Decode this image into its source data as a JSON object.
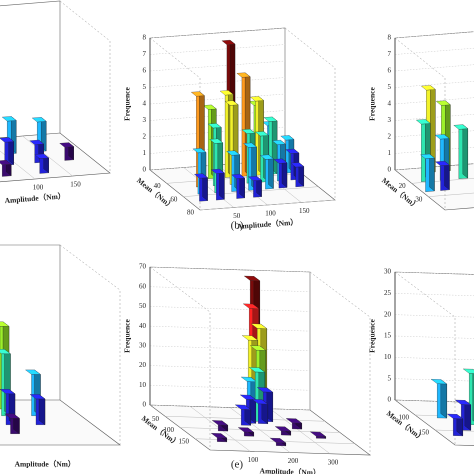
{
  "chart_data": [
    {
      "type": "bar3d",
      "x_label": "Amplitude（Nm）",
      "xlim": [
        0,
        200
      ],
      "ylim": [
        20,
        80
      ],
      "zlim": [
        0,
        8
      ],
      "xticks": [
        100,
        150
      ],
      "colors": [
        "#3a0a6e",
        "#2222d8",
        "#1fb8ff",
        "#2ee6b0",
        "#9cf02a",
        "#f2f22a",
        "#ff9a1e",
        "#ff2222",
        "#7a0a0a"
      ],
      "bars": [
        {
          "x": 20,
          "y": 40,
          "value": 1.2
        },
        {
          "x": 60,
          "y": 40,
          "value": 1.6
        },
        {
          "x": 110,
          "y": 40,
          "value": 2.0
        },
        {
          "x": 150,
          "y": 40,
          "value": 1.8
        },
        {
          "x": 40,
          "y": 55,
          "value": 1.0
        },
        {
          "x": 90,
          "y": 55,
          "value": 1.4
        },
        {
          "x": 130,
          "y": 55,
          "value": 1.1
        },
        {
          "x": 170,
          "y": 55,
          "value": 0.8
        },
        {
          "x": 70,
          "y": 70,
          "value": 0.7
        },
        {
          "x": 120,
          "y": 70,
          "value": 0.9
        }
      ]
    },
    {
      "type": "bar3d",
      "title": "(b)",
      "z_label": "Frequence",
      "x_label": "Amplitude（Nm）",
      "y_label": "Mean（Nm）",
      "xlim": [
        0,
        200
      ],
      "ylim": [
        20,
        80
      ],
      "zlim": [
        0,
        8
      ],
      "xticks": [
        50,
        100,
        150
      ],
      "yticks": [
        40,
        60,
        80
      ],
      "zticks": [
        0,
        1,
        2,
        3,
        4,
        5,
        6,
        7,
        8
      ],
      "colors": [
        "#3a0a6e",
        "#2222d8",
        "#1fb8ff",
        "#2ee6b0",
        "#9cf02a",
        "#f2f22a",
        "#ff9a1e",
        "#ff2222",
        "#7a0a0a"
      ],
      "bars": [
        {
          "x": 110,
          "y": 25,
          "value": 7.6
        },
        {
          "x": 150,
          "y": 25,
          "value": 3.8
        },
        {
          "x": 170,
          "y": 25,
          "value": 2.5
        },
        {
          "x": 70,
          "y": 35,
          "value": 4.2
        },
        {
          "x": 95,
          "y": 35,
          "value": 5.0
        },
        {
          "x": 120,
          "y": 35,
          "value": 6.0
        },
        {
          "x": 140,
          "y": 35,
          "value": 4.5
        },
        {
          "x": 160,
          "y": 35,
          "value": 3.2
        },
        {
          "x": 185,
          "y": 35,
          "value": 2.0
        },
        {
          "x": 40,
          "y": 45,
          "value": 5.5
        },
        {
          "x": 65,
          "y": 45,
          "value": 3.5
        },
        {
          "x": 90,
          "y": 45,
          "value": 4.8
        },
        {
          "x": 115,
          "y": 45,
          "value": 3.0
        },
        {
          "x": 135,
          "y": 45,
          "value": 2.8
        },
        {
          "x": 160,
          "y": 45,
          "value": 2.2
        },
        {
          "x": 180,
          "y": 45,
          "value": 1.6
        },
        {
          "x": 30,
          "y": 55,
          "value": 2.5
        },
        {
          "x": 55,
          "y": 55,
          "value": 3.0
        },
        {
          "x": 80,
          "y": 55,
          "value": 2.2
        },
        {
          "x": 105,
          "y": 55,
          "value": 2.6
        },
        {
          "x": 130,
          "y": 55,
          "value": 1.8
        },
        {
          "x": 150,
          "y": 55,
          "value": 1.5
        },
        {
          "x": 175,
          "y": 55,
          "value": 1.2
        },
        {
          "x": 20,
          "y": 65,
          "value": 1.4
        },
        {
          "x": 45,
          "y": 65,
          "value": 1.6
        },
        {
          "x": 75,
          "y": 65,
          "value": 1.2
        },
        {
          "x": 100,
          "y": 65,
          "value": 1.0
        }
      ]
    },
    {
      "type": "bar3d",
      "z_label": "Frequence",
      "y_label": "Mean（Nm）",
      "xlim": [
        0,
        200
      ],
      "ylim": [
        10,
        40
      ],
      "zlim": [
        0,
        8
      ],
      "yticks": [
        20,
        30
      ],
      "zticks": [
        0,
        1,
        2,
        3,
        4,
        5,
        6,
        7,
        8
      ],
      "colors": [
        "#3a0a6e",
        "#2222d8",
        "#1fb8ff",
        "#2ee6b0",
        "#9cf02a",
        "#f2f22a",
        "#ff9a1e",
        "#ff2222",
        "#7a0a0a"
      ],
      "bars": [
        {
          "x": 40,
          "y": 12,
          "value": 5.0
        },
        {
          "x": 60,
          "y": 12,
          "value": 4.0
        },
        {
          "x": 20,
          "y": 18,
          "value": 3.5
        },
        {
          "x": 45,
          "y": 18,
          "value": 2.5
        },
        {
          "x": 70,
          "y": 18,
          "value": 3.0
        },
        {
          "x": 10,
          "y": 25,
          "value": 2.0
        },
        {
          "x": 30,
          "y": 25,
          "value": 1.5
        }
      ]
    },
    {
      "type": "bar3d",
      "x_label": "Amplitude（Nm）",
      "xlim": [
        0,
        200
      ],
      "ylim": [
        0,
        200
      ],
      "zlim": [
        0,
        30
      ],
      "colors": [
        "#3a0a6e",
        "#2222d8",
        "#1fb8ff",
        "#2ee6b0",
        "#9cf02a",
        "#f2f22a",
        "#ff9a1e",
        "#ff2222",
        "#7a0a0a"
      ],
      "bars": [
        {
          "x": 60,
          "y": 10,
          "value": 29
        },
        {
          "x": 90,
          "y": 10,
          "value": 24
        },
        {
          "x": 40,
          "y": 30,
          "value": 26
        },
        {
          "x": 75,
          "y": 30,
          "value": 20
        },
        {
          "x": 110,
          "y": 30,
          "value": 16
        },
        {
          "x": 30,
          "y": 60,
          "value": 18
        },
        {
          "x": 60,
          "y": 60,
          "value": 14
        },
        {
          "x": 100,
          "y": 60,
          "value": 12
        },
        {
          "x": 140,
          "y": 60,
          "value": 8
        },
        {
          "x": 20,
          "y": 100,
          "value": 10
        },
        {
          "x": 55,
          "y": 100,
          "value": 8
        },
        {
          "x": 90,
          "y": 100,
          "value": 6
        },
        {
          "x": 130,
          "y": 100,
          "value": 5
        },
        {
          "x": 40,
          "y": 140,
          "value": 4
        },
        {
          "x": 80,
          "y": 140,
          "value": 3
        }
      ]
    },
    {
      "type": "bar3d",
      "title": "(e)",
      "z_label": "Frequence",
      "x_label": "Amplitude（Nm）",
      "y_label": "Mean（Nm）",
      "xlim": [
        0,
        400
      ],
      "ylim": [
        0,
        200
      ],
      "zlim": [
        0,
        70
      ],
      "xticks": [
        100,
        200,
        300
      ],
      "yticks": [
        50,
        100,
        150
      ],
      "zticks": [
        0,
        10,
        20,
        30,
        40,
        50,
        60,
        70
      ],
      "colors": [
        "#3a0a6e",
        "#2222d8",
        "#1fb8ff",
        "#2ee6b0",
        "#9cf02a",
        "#f2f22a",
        "#ff9a1e",
        "#ff2222",
        "#7a0a0a"
      ],
      "bars": [
        {
          "x": 240,
          "y": 20,
          "value": 68
        },
        {
          "x": 230,
          "y": 30,
          "value": 55
        },
        {
          "x": 250,
          "y": 30,
          "value": 45
        },
        {
          "x": 220,
          "y": 40,
          "value": 40
        },
        {
          "x": 240,
          "y": 40,
          "value": 35
        },
        {
          "x": 210,
          "y": 50,
          "value": 20
        },
        {
          "x": 230,
          "y": 50,
          "value": 25
        },
        {
          "x": 250,
          "y": 50,
          "value": 15
        },
        {
          "x": 200,
          "y": 60,
          "value": 12
        },
        {
          "x": 230,
          "y": 60,
          "value": 10
        },
        {
          "x": 180,
          "y": 70,
          "value": 8
        },
        {
          "x": 300,
          "y": 80,
          "value": 3
        },
        {
          "x": 100,
          "y": 100,
          "value": 3
        },
        {
          "x": 250,
          "y": 110,
          "value": 2
        },
        {
          "x": 150,
          "y": 120,
          "value": 2
        },
        {
          "x": 330,
          "y": 120,
          "value": 1
        },
        {
          "x": 60,
          "y": 150,
          "value": 2
        },
        {
          "x": 200,
          "y": 160,
          "value": 1.5
        }
      ]
    },
    {
      "type": "bar3d",
      "z_label": "Frequence",
      "y_label": "Mean（Nm）",
      "xlim": [
        0,
        200
      ],
      "ylim": [
        50,
        200
      ],
      "zlim": [
        0,
        30
      ],
      "yticks": [
        100,
        150
      ],
      "zticks": [
        0,
        5,
        10,
        15,
        20,
        25,
        30
      ],
      "colors": [
        "#3a0a6e",
        "#2222d8",
        "#1fb8ff",
        "#2ee6b0",
        "#9cf02a",
        "#f2f22a",
        "#ff9a1e",
        "#ff2222",
        "#7a0a0a"
      ],
      "bars": [
        {
          "x": 30,
          "y": 100,
          "value": 8
        },
        {
          "x": 60,
          "y": 120,
          "value": 12
        },
        {
          "x": 40,
          "y": 140,
          "value": 6
        },
        {
          "x": 80,
          "y": 140,
          "value": 10
        },
        {
          "x": 20,
          "y": 160,
          "value": 4
        },
        {
          "x": 60,
          "y": 170,
          "value": 5
        }
      ]
    }
  ]
}
